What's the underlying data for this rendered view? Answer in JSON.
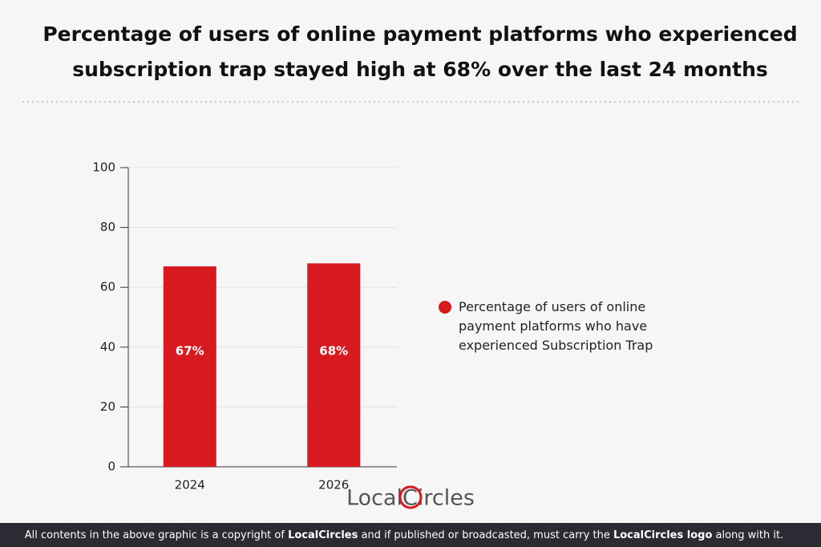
{
  "chart_data": {
    "type": "bar",
    "title": [
      "Percentage of users of online payment platforms who experienced",
      "subscription trap stayed high at 68% over the last 24 months"
    ],
    "categories": [
      "2024",
      "2026"
    ],
    "series": [
      {
        "name": "Percentage of users of online payment platforms who have experienced Subscription Trap",
        "color": "#d71920",
        "values": [
          67,
          68
        ],
        "value_labels": [
          "67%",
          "68%"
        ]
      }
    ],
    "ylim": [
      0,
      100
    ],
    "yticks": [
      0,
      20,
      40,
      60,
      80,
      100
    ],
    "grid": true,
    "legend": "right"
  },
  "logo": "LocalCircles",
  "footer": [
    "All contents in the above graphic is a copyright of ",
    "LocalCircles",
    " and if published or broadcasted, must carry the ",
    "LocalCircles logo",
    " along with it."
  ]
}
